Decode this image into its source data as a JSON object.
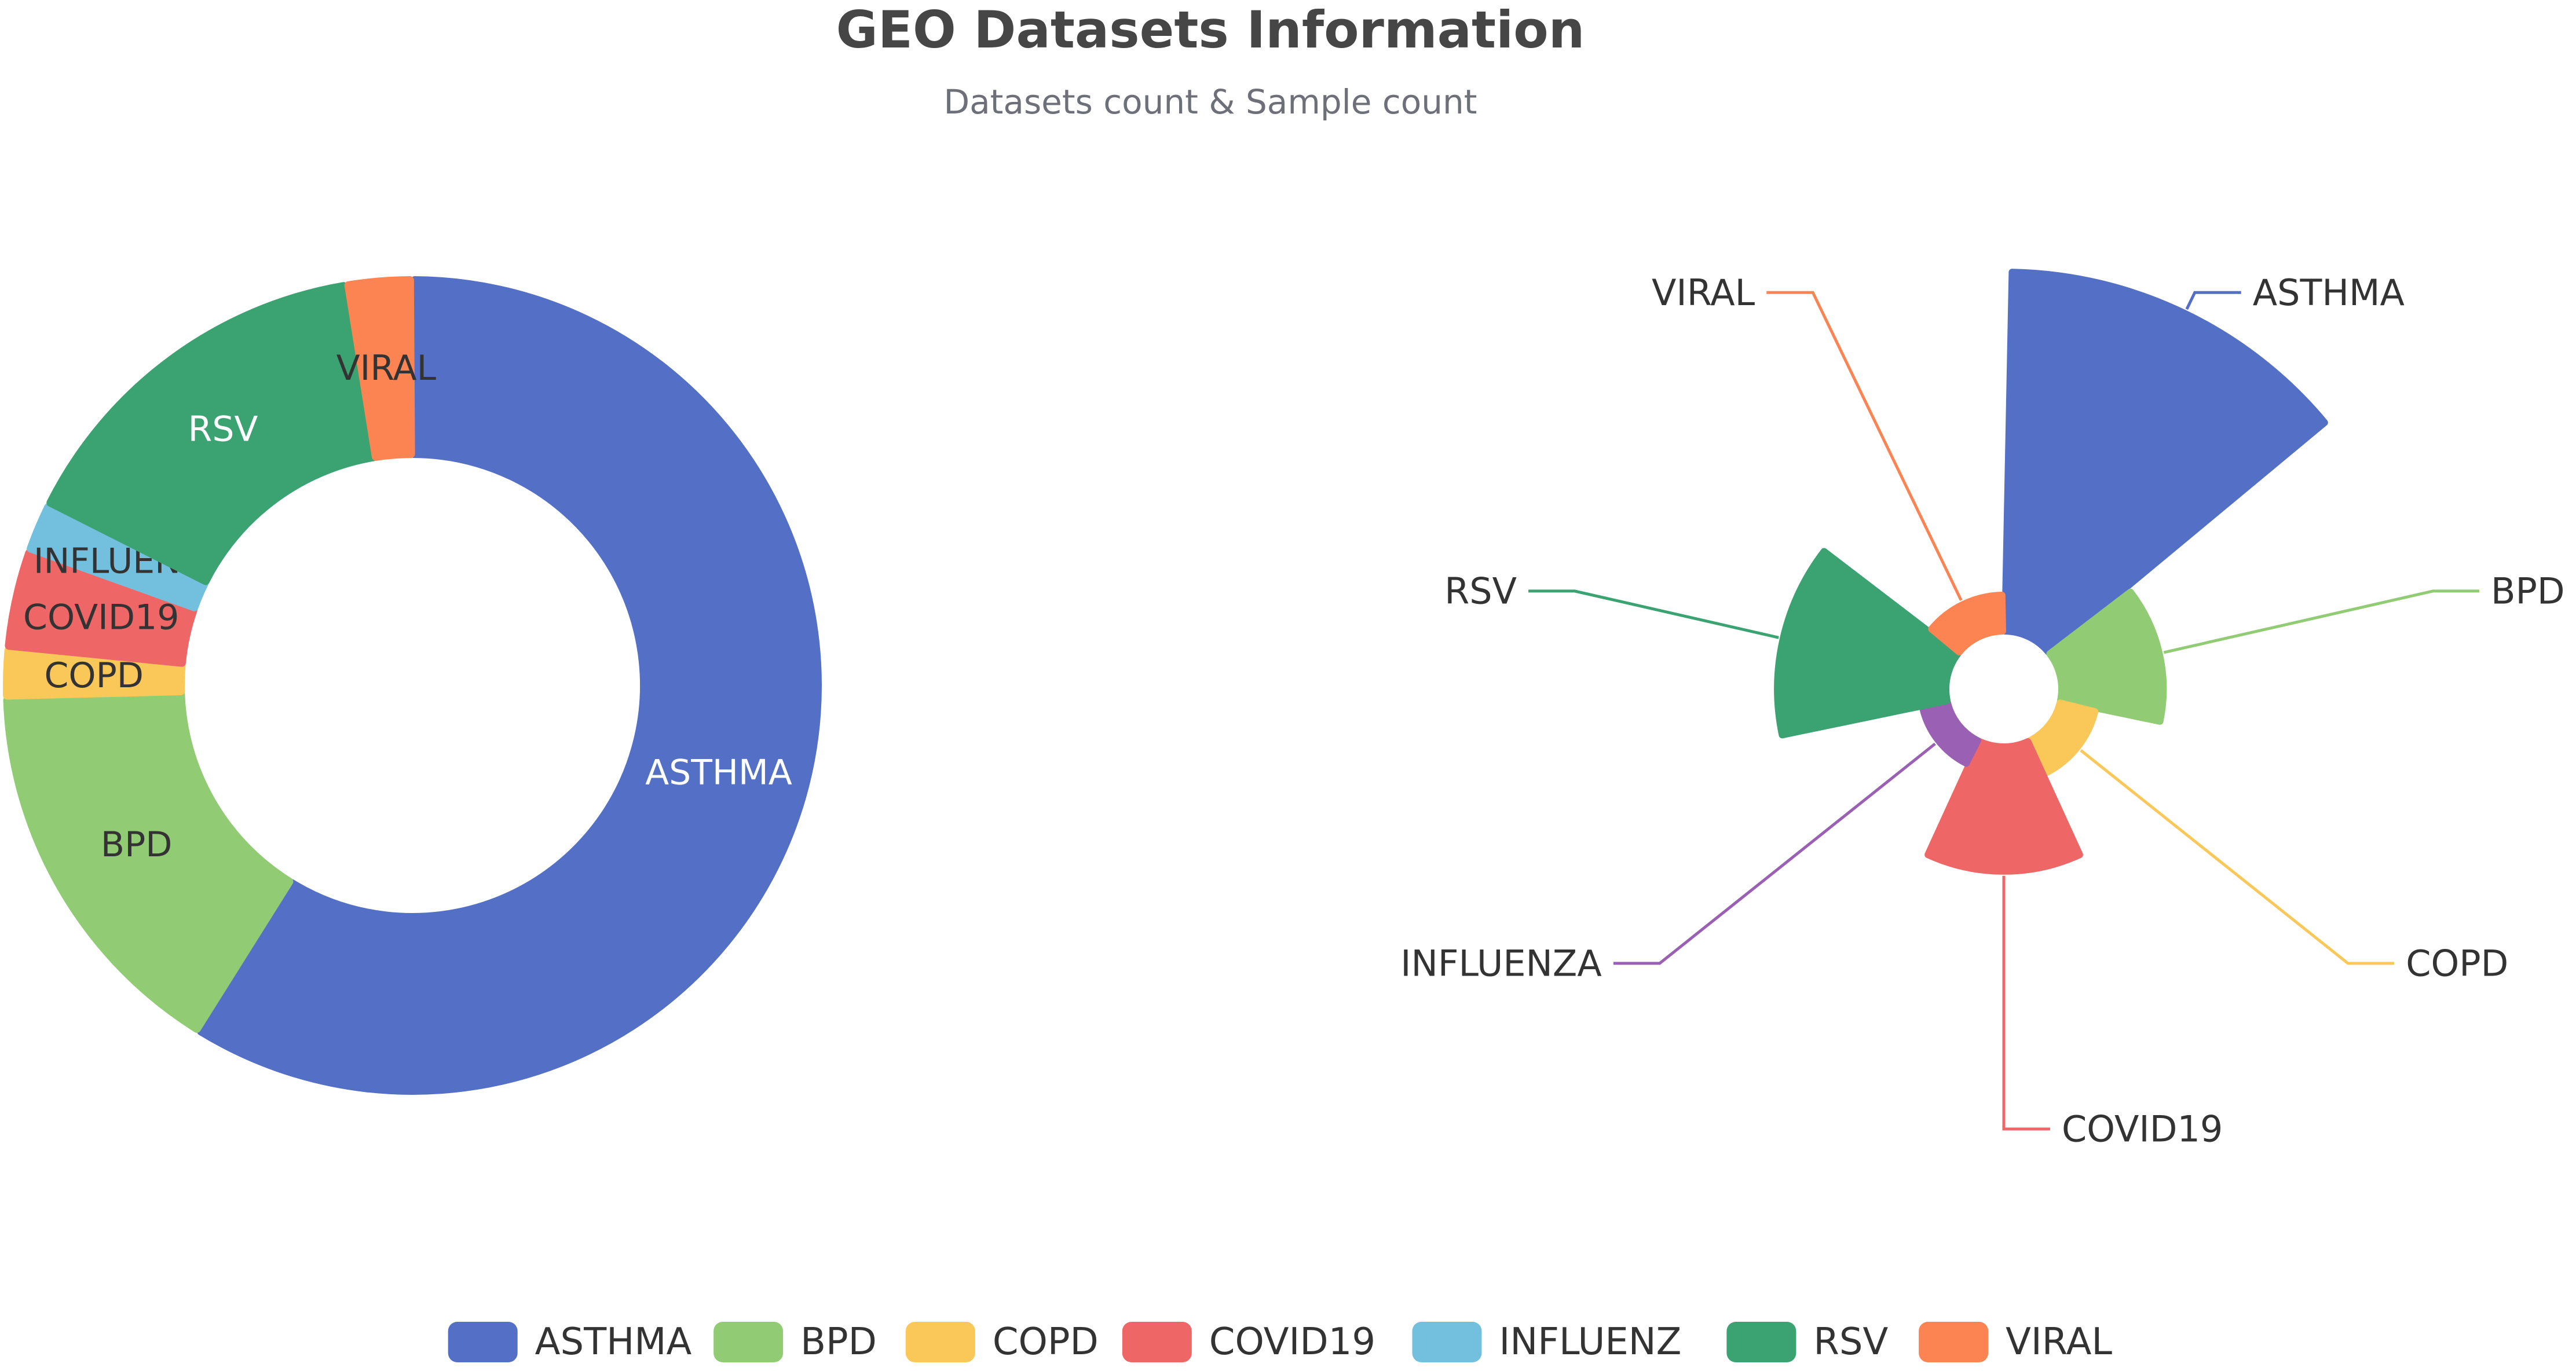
{
  "title": "GEO Datasets Information",
  "subtitle": "Datasets count & Sample count",
  "legend": [
    {
      "label": "ASTHMA",
      "color": "#5470c6"
    },
    {
      "label": "BPD",
      "color": "#91cc75"
    },
    {
      "label": "COPD",
      "color": "#fac858"
    },
    {
      "label": "COVID19",
      "color": "#ee6666"
    },
    {
      "label": "INFLUENZ",
      "color": "#73c0de"
    },
    {
      "label": "RSV",
      "color": "#3ba272"
    },
    {
      "label": "VIRAL",
      "color": "#fc8452"
    }
  ],
  "chart_data": [
    {
      "type": "pie",
      "variant": "donut",
      "categories": [
        "ASTHMA",
        "BPD",
        "COPD",
        "COVID19",
        "INFLUENZ",
        "RSV",
        "VIRAL"
      ],
      "slice_labels": [
        "ASTHMA",
        "BPD",
        "COPD",
        "COVID19",
        "INFLUENZ",
        "RSV",
        "VIRAL"
      ],
      "label_colors": [
        "#ffffff",
        "#333333",
        "#333333",
        "#333333",
        "#333333",
        "#ffffff",
        "#333333"
      ],
      "values": [
        45,
        12,
        1.5,
        3,
        1.5,
        11.5,
        2
      ],
      "colors": [
        "#5470c6",
        "#91cc75",
        "#fac858",
        "#ee6666",
        "#73c0de",
        "#3ba272",
        "#fc8452"
      ]
    },
    {
      "type": "pie",
      "variant": "rose",
      "categories": [
        "ASTHMA",
        "BPD",
        "COPD",
        "COVID19",
        "INFLUENZA",
        "RSV",
        "VIRAL"
      ],
      "values": [
        100,
        8,
        1,
        12,
        0.5,
        22,
        1
      ],
      "colors": [
        "#5470c6",
        "#91cc75",
        "#fac858",
        "#ee6666",
        "#9a60b4",
        "#3ba272",
        "#fc8452"
      ]
    }
  ]
}
